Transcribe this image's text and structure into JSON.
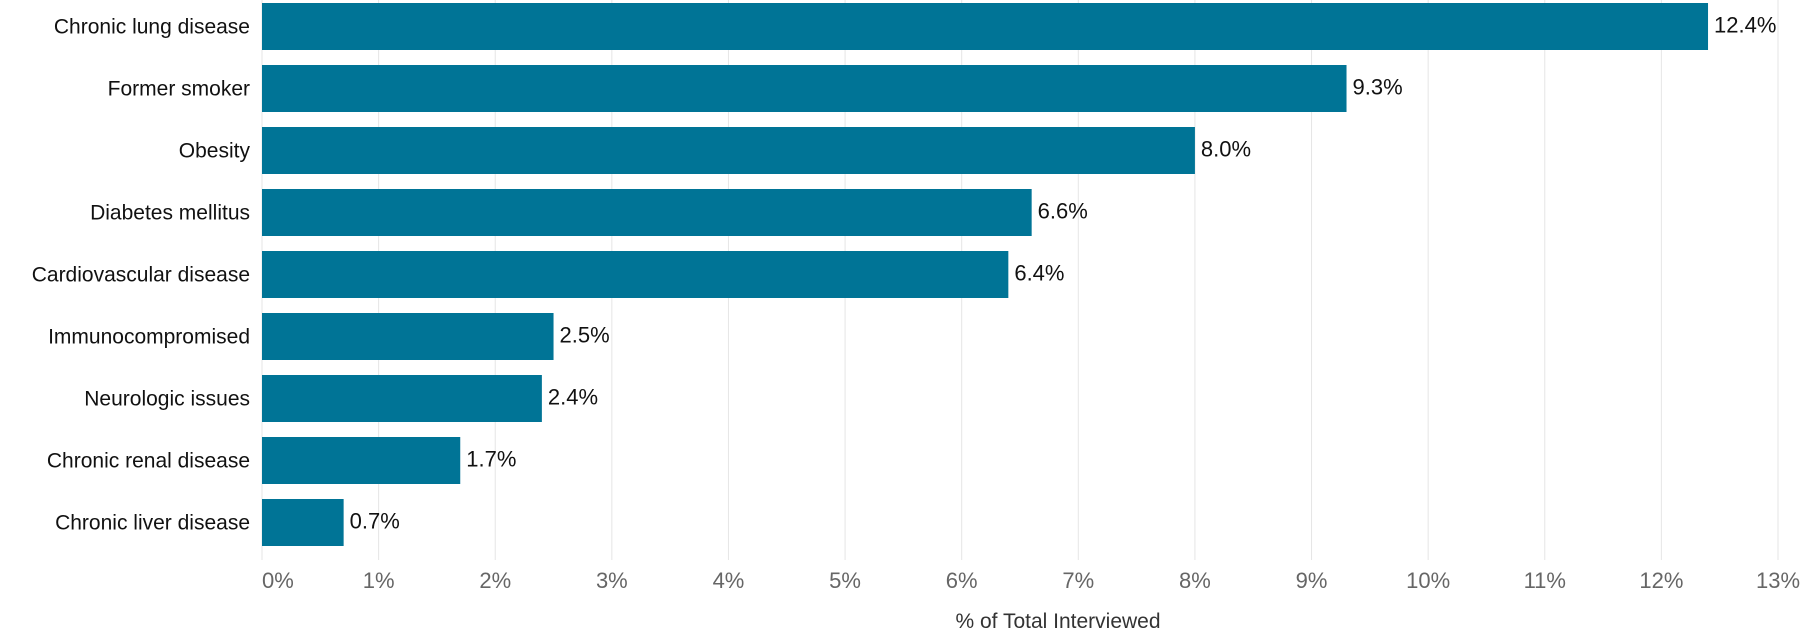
{
  "chart_data": {
    "type": "bar",
    "orientation": "horizontal",
    "categories": [
      "Chronic lung disease",
      "Former smoker",
      "Obesity",
      "Diabetes mellitus",
      "Cardiovascular disease",
      "Immunocompromised",
      "Neurologic issues",
      "Chronic renal disease",
      "Chronic liver disease"
    ],
    "values": [
      12.4,
      9.3,
      8.0,
      6.6,
      6.4,
      2.5,
      2.4,
      1.7,
      0.7
    ],
    "value_labels": [
      "12.4%",
      "9.3%",
      "8.0%",
      "6.6%",
      "6.4%",
      "2.5%",
      "2.4%",
      "1.7%",
      "0.7%"
    ],
    "xlabel": "% of Total Interviewed",
    "xlim": [
      0,
      13
    ],
    "xticks": [
      {
        "value": 0,
        "label": "0%"
      },
      {
        "value": 1,
        "label": "1%"
      },
      {
        "value": 2,
        "label": "2%"
      },
      {
        "value": 3,
        "label": "3%"
      },
      {
        "value": 4,
        "label": "4%"
      },
      {
        "value": 5,
        "label": "5%"
      },
      {
        "value": 6,
        "label": "6%"
      },
      {
        "value": 7,
        "label": "7%"
      },
      {
        "value": 8,
        "label": "8%"
      },
      {
        "value": 9,
        "label": "9%"
      },
      {
        "value": 10,
        "label": "10%"
      },
      {
        "value": 11,
        "label": "11%"
      },
      {
        "value": 12,
        "label": "12%"
      },
      {
        "value": 13,
        "label": "13%"
      }
    ],
    "grid": "vertical",
    "colors": {
      "bar": "#007496",
      "grid": "#e6e6e6",
      "tick_text": "#666666",
      "label_text": "#111111"
    }
  }
}
